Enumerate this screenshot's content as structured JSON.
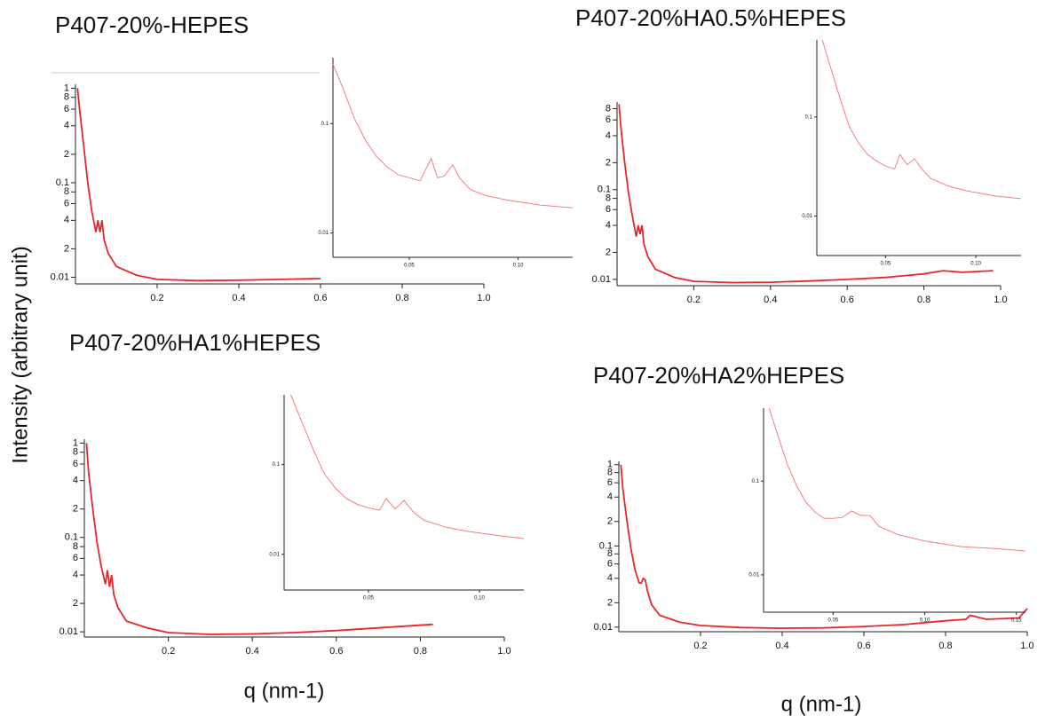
{
  "chart_data": [
    {
      "type": "line",
      "title": "P407-20%-HEPES",
      "ylabel": "Intensity (arbitrary unit)",
      "ylog": true,
      "color": "#e8262a",
      "x": [
        0.005,
        0.01,
        0.02,
        0.03,
        0.04,
        0.05,
        0.055,
        0.06,
        0.065,
        0.07,
        0.08,
        0.1,
        0.15,
        0.2,
        0.3,
        0.4,
        0.5,
        0.6
      ],
      "values": [
        1.0,
        0.6,
        0.25,
        0.1,
        0.05,
        0.03,
        0.04,
        0.03,
        0.04,
        0.025,
        0.018,
        0.013,
        0.0105,
        0.0095,
        0.0092,
        0.0093,
        0.0095,
        0.0097
      ],
      "xlim": [
        0,
        1.0
      ],
      "xticks": [
        0.2,
        0.4,
        0.6,
        0.8,
        {
          "value": 1.0,
          "label": "1.0"
        }
      ],
      "ylim": [
        0.0085,
        1.1
      ],
      "yticks": [
        1,
        {
          "value": 0.8,
          "label": "8"
        },
        {
          "value": 0.6,
          "label": "6"
        },
        {
          "value": 0.4,
          "label": "4"
        },
        {
          "value": 0.2,
          "label": "2"
        },
        0.1,
        {
          "value": 0.08,
          "label": "8"
        },
        {
          "value": 0.06,
          "label": "6"
        },
        {
          "value": 0.04,
          "label": "4"
        },
        {
          "value": 0.02,
          "label": "2"
        },
        0.01
      ],
      "inset": {
        "type": "line",
        "ylog": true,
        "color": "#f08080",
        "x": [
          0.015,
          0.02,
          0.025,
          0.03,
          0.035,
          0.04,
          0.045,
          0.05,
          0.055,
          0.06,
          0.063,
          0.066,
          0.07,
          0.073,
          0.078,
          0.085,
          0.095,
          0.11,
          0.125
        ],
        "values": [
          0.35,
          0.2,
          0.11,
          0.07,
          0.05,
          0.04,
          0.034,
          0.032,
          0.03,
          0.048,
          0.032,
          0.033,
          0.042,
          0.032,
          0.025,
          0.022,
          0.02,
          0.018,
          0.017
        ],
        "xlim": [
          0.015,
          0.125
        ],
        "xticks": [
          0.05,
          {
            "value": 0.1,
            "label": "0.10"
          }
        ],
        "ylim": [
          0.006,
          0.4
        ],
        "yticks": [
          0.1,
          0.01
        ]
      }
    },
    {
      "type": "line",
      "title": "P407-20%HA0.5%HEPES",
      "ylog": true,
      "color": "#e8262a",
      "x": [
        0.005,
        0.01,
        0.02,
        0.03,
        0.04,
        0.05,
        0.055,
        0.06,
        0.065,
        0.07,
        0.08,
        0.1,
        0.15,
        0.2,
        0.3,
        0.4,
        0.5,
        0.6,
        0.7,
        0.8,
        0.85,
        0.9,
        0.98
      ],
      "values": [
        0.9,
        0.5,
        0.2,
        0.09,
        0.05,
        0.03,
        0.04,
        0.032,
        0.04,
        0.025,
        0.018,
        0.013,
        0.0105,
        0.0095,
        0.0092,
        0.0093,
        0.0096,
        0.01,
        0.0105,
        0.0115,
        0.0125,
        0.012,
        0.0125
      ],
      "xlim": [
        0,
        1.0
      ],
      "xticks": [
        0.2,
        0.4,
        0.6,
        0.8,
        {
          "value": 1.0,
          "label": "1.0"
        }
      ],
      "ylim": [
        0.0085,
        0.95
      ],
      "yticks": [
        {
          "value": 0.8,
          "label": "8"
        },
        {
          "value": 0.6,
          "label": "6"
        },
        {
          "value": 0.4,
          "label": "4"
        },
        {
          "value": 0.2,
          "label": "2"
        },
        0.1,
        {
          "value": 0.08,
          "label": "8"
        },
        {
          "value": 0.06,
          "label": "6"
        },
        {
          "value": 0.04,
          "label": "4"
        },
        {
          "value": 0.02,
          "label": "2"
        },
        0.01
      ],
      "inset": {
        "type": "line",
        "ylog": true,
        "color": "#f08080",
        "x": [
          0.015,
          0.02,
          0.025,
          0.03,
          0.035,
          0.04,
          0.045,
          0.05,
          0.055,
          0.058,
          0.062,
          0.066,
          0.07,
          0.075,
          0.085,
          0.095,
          0.11,
          0.125
        ],
        "values": [
          0.6,
          0.3,
          0.15,
          0.08,
          0.055,
          0.042,
          0.036,
          0.032,
          0.03,
          0.042,
          0.033,
          0.038,
          0.03,
          0.024,
          0.02,
          0.018,
          0.016,
          0.015
        ],
        "xlim": [
          0.012,
          0.125
        ],
        "xticks": [
          0.05,
          {
            "value": 0.1,
            "label": "0.10"
          }
        ],
        "ylim": [
          0.004,
          0.6
        ],
        "yticks": [
          0.1,
          0.01
        ]
      }
    },
    {
      "type": "line",
      "title": "P407-20%HA1%HEPES",
      "xlabel": "q (nm-1)",
      "ylog": true,
      "color": "#e8262a",
      "x": [
        0.005,
        0.01,
        0.02,
        0.03,
        0.04,
        0.05,
        0.055,
        0.06,
        0.065,
        0.07,
        0.08,
        0.1,
        0.15,
        0.2,
        0.3,
        0.4,
        0.5,
        0.6,
        0.7,
        0.83
      ],
      "values": [
        1.0,
        0.5,
        0.2,
        0.09,
        0.05,
        0.032,
        0.045,
        0.03,
        0.04,
        0.025,
        0.018,
        0.013,
        0.011,
        0.0098,
        0.0094,
        0.0095,
        0.0098,
        0.0103,
        0.011,
        0.012
      ],
      "xlim": [
        0,
        1.0
      ],
      "xticks": [
        0.2,
        0.4,
        0.6,
        0.8,
        {
          "value": 1.0,
          "label": "1.0"
        }
      ],
      "ylim": [
        0.0088,
        1.1
      ],
      "yticks": [
        1,
        {
          "value": 0.8,
          "label": "8"
        },
        {
          "value": 0.6,
          "label": "6"
        },
        {
          "value": 0.4,
          "label": "4"
        },
        {
          "value": 0.2,
          "label": "2"
        },
        0.1,
        {
          "value": 0.08,
          "label": "8"
        },
        {
          "value": 0.06,
          "label": "6"
        },
        {
          "value": 0.04,
          "label": "4"
        },
        {
          "value": 0.02,
          "label": "2"
        },
        0.01
      ],
      "inset": {
        "type": "line",
        "ylog": true,
        "color": "#f08080",
        "x": [
          0.015,
          0.02,
          0.025,
          0.03,
          0.035,
          0.04,
          0.045,
          0.05,
          0.055,
          0.058,
          0.062,
          0.066,
          0.07,
          0.075,
          0.085,
          0.095,
          0.11,
          0.12
        ],
        "values": [
          0.6,
          0.3,
          0.15,
          0.08,
          0.055,
          0.042,
          0.036,
          0.033,
          0.031,
          0.042,
          0.032,
          0.04,
          0.03,
          0.024,
          0.02,
          0.018,
          0.016,
          0.015
        ],
        "xlim": [
          0.012,
          0.12
        ],
        "xticks": [
          0.05,
          {
            "value": 0.1,
            "label": "0.10"
          }
        ],
        "ylim": [
          0.004,
          0.6
        ],
        "yticks": [
          0.1,
          0.01
        ]
      }
    },
    {
      "type": "line",
      "title": "P407-20%HA2%HEPES",
      "xlabel": "q (nm-1)",
      "ylog": true,
      "color": "#e8262a",
      "x": [
        0.005,
        0.01,
        0.02,
        0.03,
        0.04,
        0.05,
        0.055,
        0.06,
        0.065,
        0.07,
        0.08,
        0.1,
        0.15,
        0.2,
        0.3,
        0.4,
        0.5,
        0.6,
        0.7,
        0.8,
        0.85,
        0.86,
        0.9,
        0.98,
        1.0
      ],
      "values": [
        1.0,
        0.5,
        0.2,
        0.09,
        0.05,
        0.035,
        0.035,
        0.04,
        0.038,
        0.028,
        0.019,
        0.014,
        0.0115,
        0.0105,
        0.0099,
        0.0097,
        0.0098,
        0.0102,
        0.0108,
        0.012,
        0.0125,
        0.014,
        0.0125,
        0.013,
        0.017
      ],
      "xlim": [
        0,
        1.0
      ],
      "xticks": [
        0.2,
        0.4,
        0.6,
        0.8,
        {
          "value": 1.0,
          "label": "1.0"
        }
      ],
      "ylim": [
        0.0088,
        1.1
      ],
      "yticks": [
        1,
        {
          "value": 0.8,
          "label": "8"
        },
        {
          "value": 0.6,
          "label": "6"
        },
        {
          "value": 0.4,
          "label": "4"
        },
        {
          "value": 0.2,
          "label": "2"
        },
        0.1,
        {
          "value": 0.08,
          "label": "8"
        },
        {
          "value": 0.06,
          "label": "6"
        },
        {
          "value": 0.04,
          "label": "4"
        },
        {
          "value": 0.02,
          "label": "2"
        },
        0.01
      ],
      "inset": {
        "type": "line",
        "ylog": true,
        "color": "#f08080",
        "x": [
          0.015,
          0.02,
          0.025,
          0.03,
          0.035,
          0.04,
          0.045,
          0.05,
          0.055,
          0.06,
          0.065,
          0.07,
          0.075,
          0.085,
          0.1,
          0.12,
          0.14,
          0.155
        ],
        "values": [
          0.6,
          0.3,
          0.15,
          0.09,
          0.06,
          0.047,
          0.04,
          0.04,
          0.041,
          0.048,
          0.043,
          0.043,
          0.033,
          0.027,
          0.023,
          0.02,
          0.019,
          0.018
        ],
        "xlim": [
          0.012,
          0.155
        ],
        "xticks": [
          0.05,
          {
            "value": 0.1,
            "label": "0.10"
          },
          {
            "value": 0.15,
            "label": "0.15"
          }
        ],
        "ylim": [
          0.004,
          0.6
        ],
        "yticks": [
          0.1,
          0.01
        ]
      }
    }
  ]
}
